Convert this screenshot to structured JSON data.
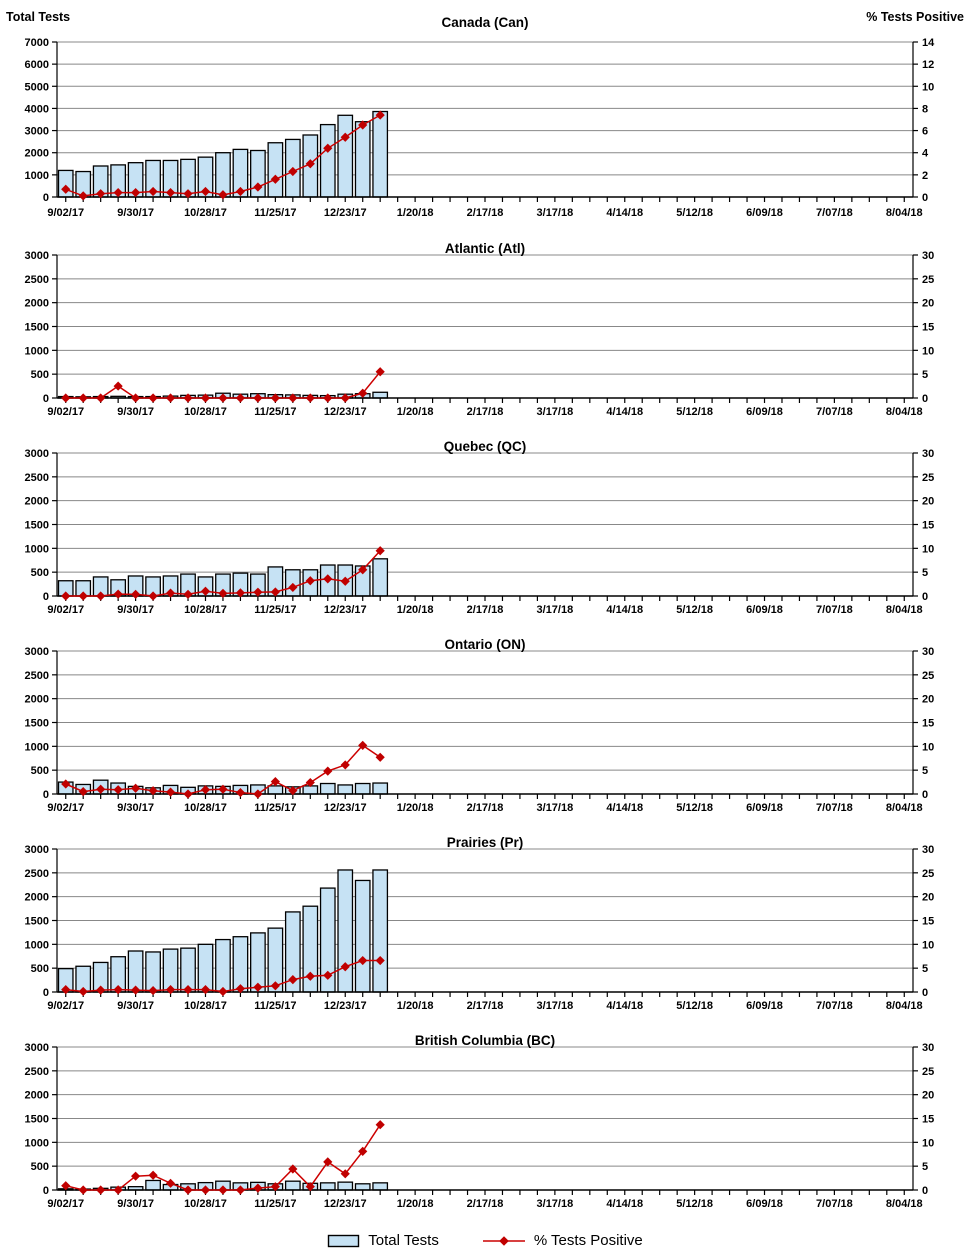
{
  "figure": {
    "background": "#FFFFFF",
    "left_header": "Total Tests",
    "right_header": "% Tests Positive"
  },
  "colors": {
    "bar_fill": "#C6E2F4",
    "bar_border": "#000000",
    "line": "#CC0000",
    "marker": "#C00000",
    "grid": "#888888",
    "axis": "#000000",
    "text": "#000000"
  },
  "legend": {
    "items": [
      {
        "label": "Total Tests",
        "type": "bar"
      },
      {
        "label": "% Tests Positive",
        "type": "line"
      }
    ]
  },
  "x_axis": {
    "tick_labels": [
      "9/02/17",
      "9/30/17",
      "10/28/17",
      "11/25/17",
      "12/23/17",
      "1/20/18",
      "2/17/18",
      "3/17/18",
      "4/14/18",
      "5/12/18",
      "6/09/18",
      "7/07/18",
      "8/04/18"
    ],
    "label_every_n_weeks": 4,
    "total_week_slots": 49
  },
  "chart_data": [
    {
      "key": "canada",
      "type": "combo",
      "title": "Canada (Can)",
      "show_axis_headers": true,
      "left_axis": {
        "title": "Total Tests",
        "min": 0,
        "max": 7000,
        "step": 1000
      },
      "right_axis": {
        "title": "% Tests Positive",
        "min": 0,
        "max": 14,
        "step": 2
      },
      "data_week_labels": [
        "9/02/17",
        "9/09/17",
        "9/16/17",
        "9/23/17",
        "9/30/17",
        "10/07/17",
        "10/14/17",
        "10/21/17",
        "10/28/17",
        "11/04/17",
        "11/11/17",
        "11/18/17",
        "11/25/17",
        "12/02/17",
        "12/09/17",
        "12/16/17",
        "12/23/17",
        "12/30/17",
        "1/06/18"
      ],
      "series": [
        {
          "name": "Total Tests",
          "type": "bar",
          "axis": "left",
          "values": [
            1200,
            1150,
            1400,
            1450,
            1550,
            1650,
            1650,
            1700,
            1800,
            2000,
            2150,
            2100,
            2450,
            2600,
            2800,
            3270,
            3690,
            3400,
            3860
          ]
        },
        {
          "name": "% Tests Positive",
          "type": "line",
          "axis": "right",
          "values": [
            0.7,
            0.1,
            0.3,
            0.4,
            0.4,
            0.5,
            0.4,
            0.3,
            0.5,
            0.2,
            0.5,
            0.9,
            1.6,
            2.3,
            3.0,
            4.4,
            5.4,
            6.5,
            7.4
          ]
        }
      ]
    },
    {
      "key": "atlantic",
      "type": "combo",
      "title": "Atlantic (Atl)",
      "show_axis_headers": false,
      "left_axis": {
        "title": "Total Tests",
        "min": 0,
        "max": 3000,
        "step": 500
      },
      "right_axis": {
        "title": "% Tests Positive",
        "min": 0,
        "max": 30,
        "step": 5
      },
      "data_week_labels": [
        "9/02/17",
        "9/09/17",
        "9/16/17",
        "9/23/17",
        "9/30/17",
        "10/07/17",
        "10/14/17",
        "10/21/17",
        "10/28/17",
        "11/04/17",
        "11/11/17",
        "11/18/17",
        "11/25/17",
        "12/02/17",
        "12/09/17",
        "12/16/17",
        "12/23/17",
        "12/30/17",
        "1/06/18"
      ],
      "series": [
        {
          "name": "Total Tests",
          "type": "bar",
          "axis": "left",
          "values": [
            30,
            25,
            30,
            35,
            30,
            30,
            40,
            55,
            60,
            100,
            80,
            90,
            70,
            65,
            55,
            50,
            80,
            90,
            120
          ]
        },
        {
          "name": "% Tests Positive",
          "type": "line",
          "axis": "right",
          "values": [
            0,
            0,
            0,
            2.5,
            0,
            0,
            0,
            0,
            0,
            0,
            0,
            0,
            0,
            0,
            0,
            0,
            0,
            1.0,
            5.5
          ]
        }
      ]
    },
    {
      "key": "quebec",
      "type": "combo",
      "title": "Quebec (QC)",
      "show_axis_headers": false,
      "left_axis": {
        "title": "Total Tests",
        "min": 0,
        "max": 3000,
        "step": 500
      },
      "right_axis": {
        "title": "% Tests Positive",
        "min": 0,
        "max": 30,
        "step": 5
      },
      "data_week_labels": [
        "9/02/17",
        "9/09/17",
        "9/16/17",
        "9/23/17",
        "9/30/17",
        "10/07/17",
        "10/14/17",
        "10/21/17",
        "10/28/17",
        "11/04/17",
        "11/11/17",
        "11/18/17",
        "11/25/17",
        "12/02/17",
        "12/09/17",
        "12/16/17",
        "12/23/17",
        "12/30/17",
        "1/06/18"
      ],
      "series": [
        {
          "name": "Total Tests",
          "type": "bar",
          "axis": "left",
          "values": [
            320,
            320,
            400,
            340,
            420,
            400,
            420,
            460,
            400,
            460,
            480,
            460,
            610,
            550,
            550,
            650,
            650,
            630,
            780
          ]
        },
        {
          "name": "% Tests Positive",
          "type": "line",
          "axis": "right",
          "values": [
            0,
            0,
            0,
            0.4,
            0.35,
            0,
            0.6,
            0.35,
            1.0,
            0.55,
            0.65,
            0.8,
            0.85,
            1.8,
            3.2,
            3.6,
            3.1,
            5.5,
            9.5
          ]
        }
      ]
    },
    {
      "key": "ontario",
      "type": "combo",
      "title": "Ontario (ON)",
      "show_axis_headers": false,
      "left_axis": {
        "title": "Total Tests",
        "min": 0,
        "max": 3000,
        "step": 500
      },
      "right_axis": {
        "title": "% Tests Positive",
        "min": 0,
        "max": 30,
        "step": 5
      },
      "data_week_labels": [
        "9/02/17",
        "9/09/17",
        "9/16/17",
        "9/23/17",
        "9/30/17",
        "10/07/17",
        "10/14/17",
        "10/21/17",
        "10/28/17",
        "11/04/17",
        "11/11/17",
        "11/18/17",
        "11/25/17",
        "12/02/17",
        "12/09/17",
        "12/16/17",
        "12/23/17",
        "12/30/17",
        "1/06/18"
      ],
      "series": [
        {
          "name": "Total Tests",
          "type": "bar",
          "axis": "left",
          "values": [
            250,
            200,
            290,
            230,
            160,
            130,
            180,
            140,
            170,
            160,
            180,
            190,
            170,
            150,
            170,
            220,
            190,
            220,
            230
          ]
        },
        {
          "name": "% Tests Positive",
          "type": "line",
          "axis": "right",
          "values": [
            2.1,
            0.5,
            1.0,
            0.9,
            1.2,
            0.7,
            0.4,
            0,
            0.9,
            1.0,
            0.3,
            0,
            2.6,
            0.7,
            2.4,
            4.8,
            6.1,
            10.2,
            7.7
          ]
        }
      ]
    },
    {
      "key": "prairies",
      "type": "combo",
      "title": "Prairies (Pr)",
      "show_axis_headers": false,
      "left_axis": {
        "title": "Total Tests",
        "min": 0,
        "max": 3000,
        "step": 500
      },
      "right_axis": {
        "title": "% Tests Positive",
        "min": 0,
        "max": 30,
        "step": 5
      },
      "data_week_labels": [
        "9/02/17",
        "9/09/17",
        "9/16/17",
        "9/23/17",
        "9/30/17",
        "10/07/17",
        "10/14/17",
        "10/21/17",
        "10/28/17",
        "11/04/17",
        "11/11/17",
        "11/18/17",
        "11/25/17",
        "12/02/17",
        "12/09/17",
        "12/16/17",
        "12/23/17",
        "12/30/17",
        "1/06/18"
      ],
      "series": [
        {
          "name": "Total Tests",
          "type": "bar",
          "axis": "left",
          "values": [
            490,
            540,
            620,
            740,
            860,
            840,
            900,
            920,
            1000,
            1100,
            1160,
            1240,
            1340,
            1680,
            1800,
            2180,
            2560,
            2340,
            2560
          ]
        },
        {
          "name": "% Tests Positive",
          "type": "line",
          "axis": "right",
          "values": [
            0.5,
            0.1,
            0.4,
            0.5,
            0.4,
            0.3,
            0.5,
            0.5,
            0.5,
            0.1,
            0.7,
            1.0,
            1.3,
            2.6,
            3.3,
            3.5,
            5.3,
            6.6,
            6.6
          ]
        }
      ]
    },
    {
      "key": "bc",
      "type": "combo",
      "title": "British Columbia (BC)",
      "show_axis_headers": false,
      "left_axis": {
        "title": "Total Tests",
        "min": 0,
        "max": 3000,
        "step": 500
      },
      "right_axis": {
        "title": "% Tests Positive",
        "min": 0,
        "max": 30,
        "step": 5
      },
      "data_week_labels": [
        "9/02/17",
        "9/09/17",
        "9/16/17",
        "9/23/17",
        "9/30/17",
        "10/07/17",
        "10/14/17",
        "10/21/17",
        "10/28/17",
        "11/04/17",
        "11/11/17",
        "11/18/17",
        "11/25/17",
        "12/02/17",
        "12/09/17",
        "12/16/17",
        "12/23/17",
        "12/30/17",
        "1/06/18"
      ],
      "series": [
        {
          "name": "Total Tests",
          "type": "bar",
          "axis": "left",
          "values": [
            25,
            20,
            35,
            60,
            70,
            200,
            115,
            130,
            155,
            185,
            150,
            160,
            130,
            185,
            140,
            150,
            165,
            130,
            150
          ]
        },
        {
          "name": "% Tests Positive",
          "type": "line",
          "axis": "right",
          "values": [
            0.9,
            0,
            0,
            0,
            2.9,
            3.1,
            1.4,
            0,
            0,
            0,
            0,
            0.4,
            0.7,
            4.4,
            0.7,
            5.9,
            3.4,
            8.1,
            13.7
          ]
        }
      ]
    }
  ]
}
